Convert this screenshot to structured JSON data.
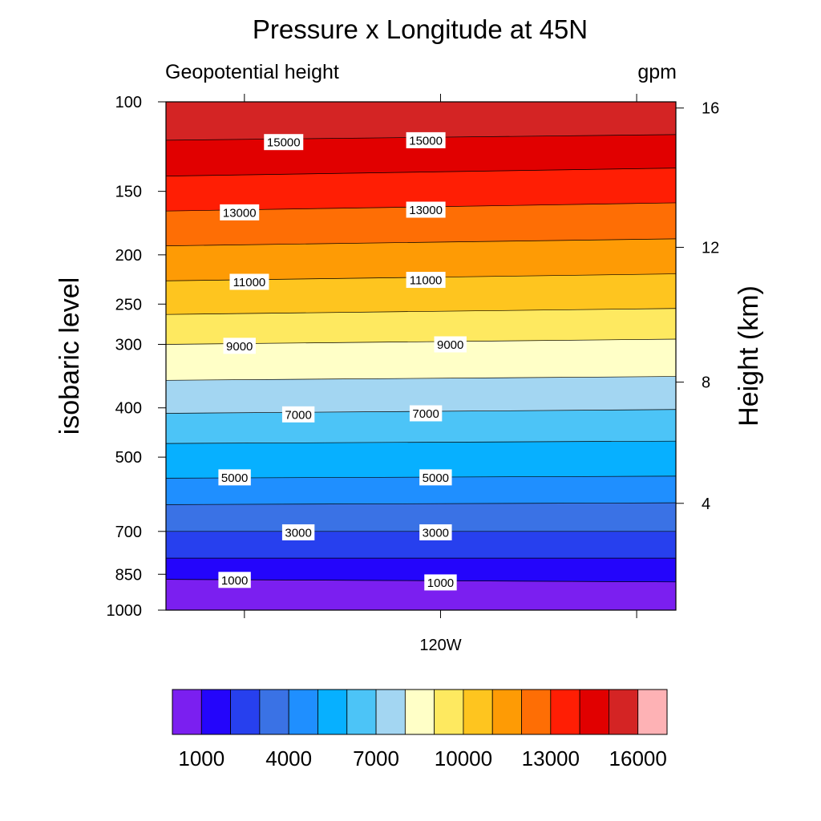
{
  "chart_data": {
    "type": "contour",
    "title": "Pressure x Longitude at 45N",
    "subtitle_left": "Geopotential height",
    "subtitle_right": "gpm",
    "ylabel": "isobaric level",
    "ylabel_right": "Height (km)",
    "y_scale": "log",
    "y_inverted": true,
    "ylim": [
      1000,
      100
    ],
    "y_ticks": [
      100,
      150,
      200,
      250,
      300,
      400,
      500,
      700,
      850,
      1000
    ],
    "y_right_ticks": [
      16,
      12,
      8,
      4
    ],
    "x_ticks": [
      {
        "lon": -160,
        "label": ""
      },
      {
        "lon": -120,
        "label": "120W"
      },
      {
        "lon": -80,
        "label": ""
      }
    ],
    "xlim": [
      -176,
      -72
    ],
    "contour_levels": [
      1000,
      2000,
      3000,
      4000,
      5000,
      6000,
      7000,
      8000,
      9000,
      10000,
      11000,
      12000,
      13000,
      14000,
      15000,
      16000
    ],
    "contour_lines": [
      {
        "level": 1000,
        "p_left": 870,
        "p_right": 880
      },
      {
        "level": 2000,
        "p_left": 790,
        "p_right": 790
      },
      {
        "level": 3000,
        "p_left": 700,
        "p_right": 700
      },
      {
        "level": 4000,
        "p_left": 620,
        "p_right": 615
      },
      {
        "level": 5000,
        "p_left": 550,
        "p_right": 545
      },
      {
        "level": 6000,
        "p_left": 470,
        "p_right": 465
      },
      {
        "level": 7000,
        "p_left": 410,
        "p_right": 403
      },
      {
        "level": 8000,
        "p_left": 353,
        "p_right": 347
      },
      {
        "level": 9000,
        "p_left": 300,
        "p_right": 293
      },
      {
        "level": 10000,
        "p_left": 262,
        "p_right": 255
      },
      {
        "level": 11000,
        "p_left": 225,
        "p_right": 218
      },
      {
        "level": 12000,
        "p_left": 192,
        "p_right": 186
      },
      {
        "level": 13000,
        "p_left": 164,
        "p_right": 158
      },
      {
        "level": 14000,
        "p_left": 140,
        "p_right": 135
      },
      {
        "level": 15000,
        "p_left": 119,
        "p_right": 116
      }
    ],
    "contour_labels": [
      {
        "text": "15000",
        "lon": -152,
        "p": 120
      },
      {
        "text": "15000",
        "lon": -123,
        "p": 119
      },
      {
        "text": "13000",
        "lon": -161,
        "p": 165
      },
      {
        "text": "13000",
        "lon": -123,
        "p": 163
      },
      {
        "text": "11000",
        "lon": -159,
        "p": 226
      },
      {
        "text": "11000",
        "lon": -123,
        "p": 224
      },
      {
        "text": "9000",
        "lon": -161,
        "p": 302
      },
      {
        "text": "9000",
        "lon": -118,
        "p": 300
      },
      {
        "text": "7000",
        "lon": -149,
        "p": 412
      },
      {
        "text": "7000",
        "lon": -123,
        "p": 410
      },
      {
        "text": "5000",
        "lon": -162,
        "p": 548
      },
      {
        "text": "5000",
        "lon": -121,
        "p": 548
      },
      {
        "text": "3000",
        "lon": -149,
        "p": 703
      },
      {
        "text": "3000",
        "lon": -121,
        "p": 703
      },
      {
        "text": "1000",
        "lon": -162,
        "p": 872
      },
      {
        "text": "1000",
        "lon": -120,
        "p": 882
      }
    ],
    "fill_colors": [
      "#7b1ff0",
      "#2405fb",
      "#2740ee",
      "#3a72e5",
      "#1f8fff",
      "#07b0ff",
      "#4cc4f7",
      "#a3d6f2",
      "#ffffc7",
      "#fee960",
      "#fec51f",
      "#fe9b05",
      "#fe6e05",
      "#ff1e04",
      "#e10000",
      "#d42424",
      "#feb2b5"
    ],
    "colorbar_ticks": [
      "1000",
      "4000",
      "7000",
      "10000",
      "13000",
      "16000"
    ]
  }
}
